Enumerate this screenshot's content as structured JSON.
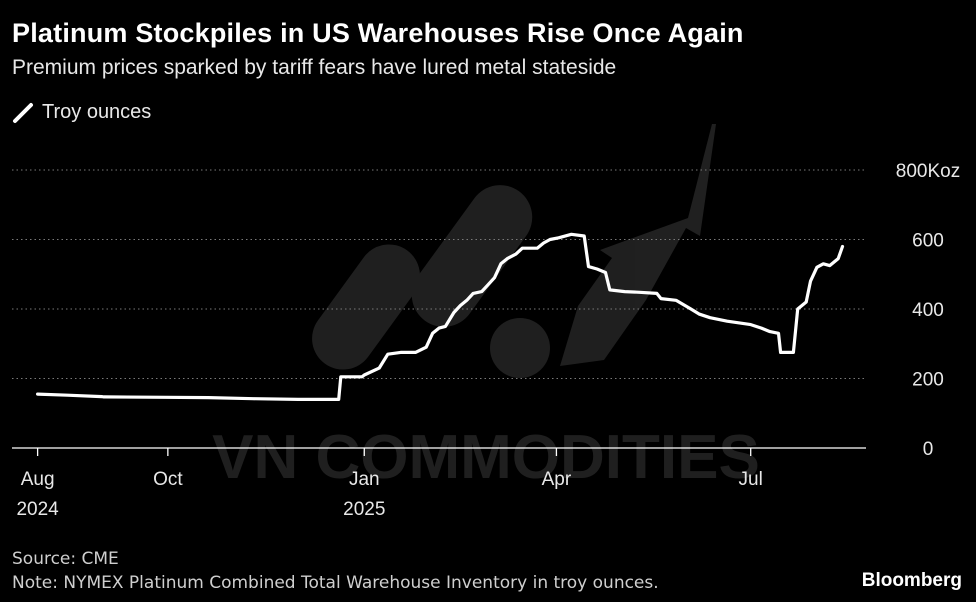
{
  "header": {
    "title": "Platinum Stockpiles in US Warehouses Rise Once Again",
    "subtitle": "Premium prices sparked by tariff fears have lured metal stateside"
  },
  "legend": {
    "label": "Troy ounces"
  },
  "footer": {
    "source": "Source: CME",
    "note": "Note: NYMEX Platinum Combined Total Warehouse Inventory in troy ounces.",
    "brand": "Bloomberg"
  },
  "watermark": {
    "text": "VN COMMODITIES"
  },
  "colors": {
    "background": "#000000",
    "line": "#ffffff",
    "grid": "#7a7a7a",
    "text": "#ffffff",
    "watermark": "#3a3a3a"
  },
  "chart_data": {
    "type": "line",
    "title": "Platinum Stockpiles in US Warehouses Rise Once Again",
    "xlabel": "",
    "ylabel": "Troy ounces",
    "ylim": [
      0,
      800
    ],
    "xlim": [
      "2024-07-20",
      "2025-08-24"
    ],
    "y_ticks": [
      {
        "value": 800,
        "label": "800Koz"
      },
      {
        "value": 600,
        "label": "600"
      },
      {
        "value": 400,
        "label": "400"
      },
      {
        "value": 200,
        "label": "200"
      },
      {
        "value": 0,
        "label": "0"
      }
    ],
    "x_ticks": [
      {
        "date": "2024-08-01",
        "label": "Aug",
        "sublabel": "2024"
      },
      {
        "date": "2024-10-01",
        "label": "Oct",
        "sublabel": ""
      },
      {
        "date": "2025-01-01",
        "label": "Jan",
        "sublabel": "2025"
      },
      {
        "date": "2025-04-01",
        "label": "Apr",
        "sublabel": ""
      },
      {
        "date": "2025-07-01",
        "label": "Jul",
        "sublabel": ""
      }
    ],
    "grid": true,
    "legend": "top-left",
    "series": [
      {
        "name": "Troy ounces",
        "unit": "Koz",
        "points": [
          [
            "2024-08-01",
            155
          ],
          [
            "2024-08-15",
            152
          ],
          [
            "2024-08-31",
            148
          ],
          [
            "2024-09-01",
            147
          ],
          [
            "2024-09-30",
            146
          ],
          [
            "2024-10-20",
            145
          ],
          [
            "2024-11-10",
            142
          ],
          [
            "2024-12-01",
            140
          ],
          [
            "2024-12-20",
            140
          ],
          [
            "2024-12-21",
            205
          ],
          [
            "2024-12-31",
            205
          ],
          [
            "2025-01-01",
            210
          ],
          [
            "2025-01-08",
            230
          ],
          [
            "2025-01-12",
            270
          ],
          [
            "2025-01-18",
            275
          ],
          [
            "2025-01-25",
            275
          ],
          [
            "2025-01-30",
            290
          ],
          [
            "2025-02-02",
            330
          ],
          [
            "2025-02-05",
            345
          ],
          [
            "2025-02-08",
            350
          ],
          [
            "2025-02-12",
            390
          ],
          [
            "2025-02-15",
            410
          ],
          [
            "2025-02-18",
            425
          ],
          [
            "2025-02-21",
            445
          ],
          [
            "2025-02-25",
            450
          ],
          [
            "2025-02-28",
            470
          ],
          [
            "2025-03-03",
            490
          ],
          [
            "2025-03-06",
            530
          ],
          [
            "2025-03-09",
            545
          ],
          [
            "2025-03-13",
            558
          ],
          [
            "2025-03-16",
            575
          ],
          [
            "2025-03-23",
            575
          ],
          [
            "2025-03-26",
            590
          ],
          [
            "2025-03-29",
            600
          ],
          [
            "2025-04-02",
            605
          ],
          [
            "2025-04-08",
            615
          ],
          [
            "2025-04-14",
            610
          ],
          [
            "2025-04-16",
            522
          ],
          [
            "2025-04-20",
            515
          ],
          [
            "2025-04-24",
            505
          ],
          [
            "2025-04-26",
            455
          ],
          [
            "2025-05-03",
            450
          ],
          [
            "2025-05-10",
            448
          ],
          [
            "2025-05-18",
            445
          ],
          [
            "2025-05-20",
            430
          ],
          [
            "2025-05-27",
            425
          ],
          [
            "2025-06-03",
            400
          ],
          [
            "2025-06-07",
            385
          ],
          [
            "2025-06-12",
            375
          ],
          [
            "2025-06-20",
            365
          ],
          [
            "2025-07-01",
            355
          ],
          [
            "2025-07-06",
            345
          ],
          [
            "2025-07-10",
            335
          ],
          [
            "2025-07-14",
            330
          ],
          [
            "2025-07-15",
            275
          ],
          [
            "2025-07-21",
            275
          ],
          [
            "2025-07-23",
            400
          ],
          [
            "2025-07-27",
            420
          ],
          [
            "2025-07-29",
            480
          ],
          [
            "2025-08-01",
            520
          ],
          [
            "2025-08-04",
            530
          ],
          [
            "2025-08-07",
            525
          ],
          [
            "2025-08-11",
            545
          ],
          [
            "2025-08-13",
            580
          ]
        ]
      }
    ]
  }
}
